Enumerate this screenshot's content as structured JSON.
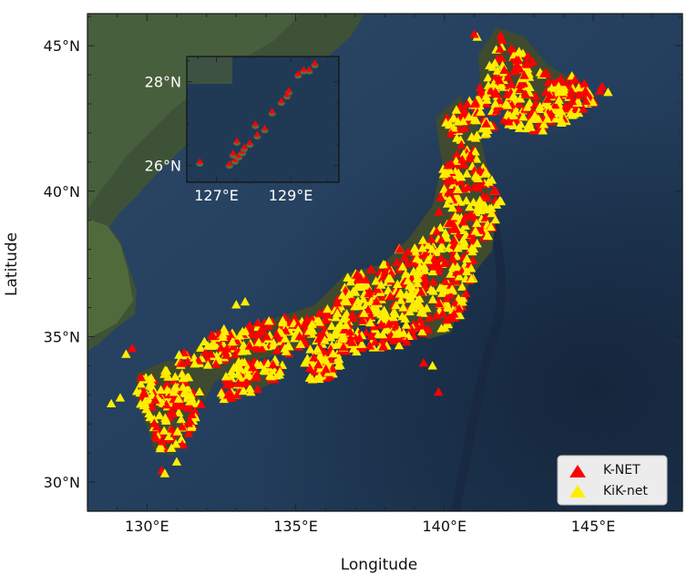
{
  "chart_data": {
    "type": "scatter",
    "xlabel": "Longitude",
    "ylabel": "Latitude",
    "xlim": [
      128,
      148
    ],
    "ylim": [
      29,
      46.1
    ],
    "x_ticks": [
      {
        "value": 130,
        "label": "130°E"
      },
      {
        "value": 135,
        "label": "135°E"
      },
      {
        "value": 140,
        "label": "140°E"
      },
      {
        "value": 145,
        "label": "145°E"
      }
    ],
    "y_ticks": [
      {
        "value": 30,
        "label": "30°N"
      },
      {
        "value": 35,
        "label": "35°N"
      },
      {
        "value": 40,
        "label": "40°N"
      },
      {
        "value": 45,
        "label": "45°N"
      }
    ],
    "grid": false,
    "legend_position": "bottom-right",
    "series": [
      {
        "name": "K-NET",
        "color": "#ff0000",
        "marker": "triangle-up"
      },
      {
        "name": "KiK-net",
        "color": "#ffee00",
        "marker": "triangle-up"
      }
    ],
    "inset": {
      "xlim": [
        126.2,
        130.3
      ],
      "ylim": [
        25.6,
        28.6
      ],
      "x_ticks": [
        {
          "value": 127,
          "label": "127°E"
        },
        {
          "value": 129,
          "label": "129°E"
        }
      ],
      "y_ticks": [
        {
          "value": 26,
          "label": "26°N"
        },
        {
          "value": 28,
          "label": "28°N"
        }
      ],
      "points": [
        [
          126.55,
          26.1
        ],
        [
          127.35,
          26.05
        ],
        [
          127.5,
          26.15
        ],
        [
          127.6,
          26.25
        ],
        [
          127.7,
          26.35
        ],
        [
          127.75,
          26.45
        ],
        [
          127.9,
          26.55
        ],
        [
          128.1,
          26.75
        ],
        [
          128.3,
          26.9
        ],
        [
          128.5,
          27.3
        ],
        [
          128.75,
          27.55
        ],
        [
          128.95,
          27.8
        ],
        [
          129.2,
          28.2
        ],
        [
          129.5,
          28.3
        ],
        [
          129.65,
          28.45
        ],
        [
          129.35,
          28.3
        ],
        [
          127.55,
          26.6
        ],
        [
          127.45,
          26.3
        ],
        [
          128.05,
          27.0
        ],
        [
          128.9,
          27.7
        ]
      ]
    }
  }
}
